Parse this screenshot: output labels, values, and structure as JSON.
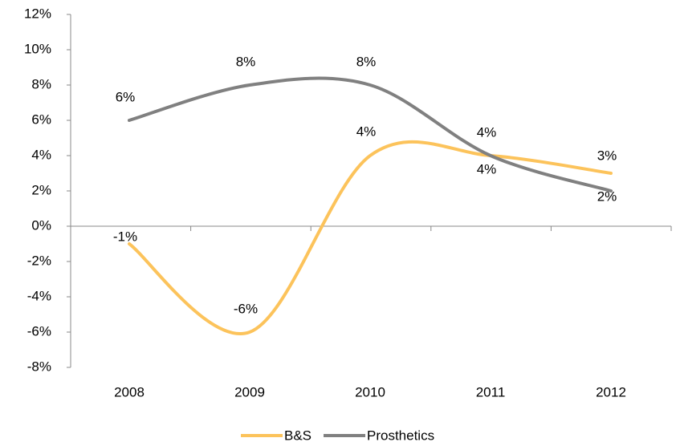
{
  "chart_data": {
    "type": "line",
    "categories": [
      "2008",
      "2009",
      "2010",
      "2011",
      "2012"
    ],
    "series": [
      {
        "name": "B&S",
        "color": "#fcc35b",
        "values": [
          -1,
          -6,
          4,
          4,
          3
        ],
        "value_labels": [
          "-1%",
          "-6%",
          "4%",
          "4%",
          "3%"
        ]
      },
      {
        "name": "Prosthetics",
        "color": "#808080",
        "values": [
          6,
          8,
          8,
          4,
          2
        ],
        "value_labels": [
          "6%",
          "8%",
          "8%",
          "4%",
          "2%"
        ]
      }
    ],
    "ylim": [
      -8,
      12
    ],
    "yticks": [
      {
        "value": -8,
        "label": "-8%"
      },
      {
        "value": -6,
        "label": "-6%"
      },
      {
        "value": -4,
        "label": "-4%"
      },
      {
        "value": -2,
        "label": "-2%"
      },
      {
        "value": 0,
        "label": "0%"
      },
      {
        "value": 2,
        "label": "2%"
      },
      {
        "value": 4,
        "label": "4%"
      },
      {
        "value": 6,
        "label": "6%"
      },
      {
        "value": 8,
        "label": "8%"
      },
      {
        "value": 10,
        "label": "10%"
      },
      {
        "value": 12,
        "label": "12%"
      }
    ],
    "smooth": true,
    "legend": "bottom"
  }
}
